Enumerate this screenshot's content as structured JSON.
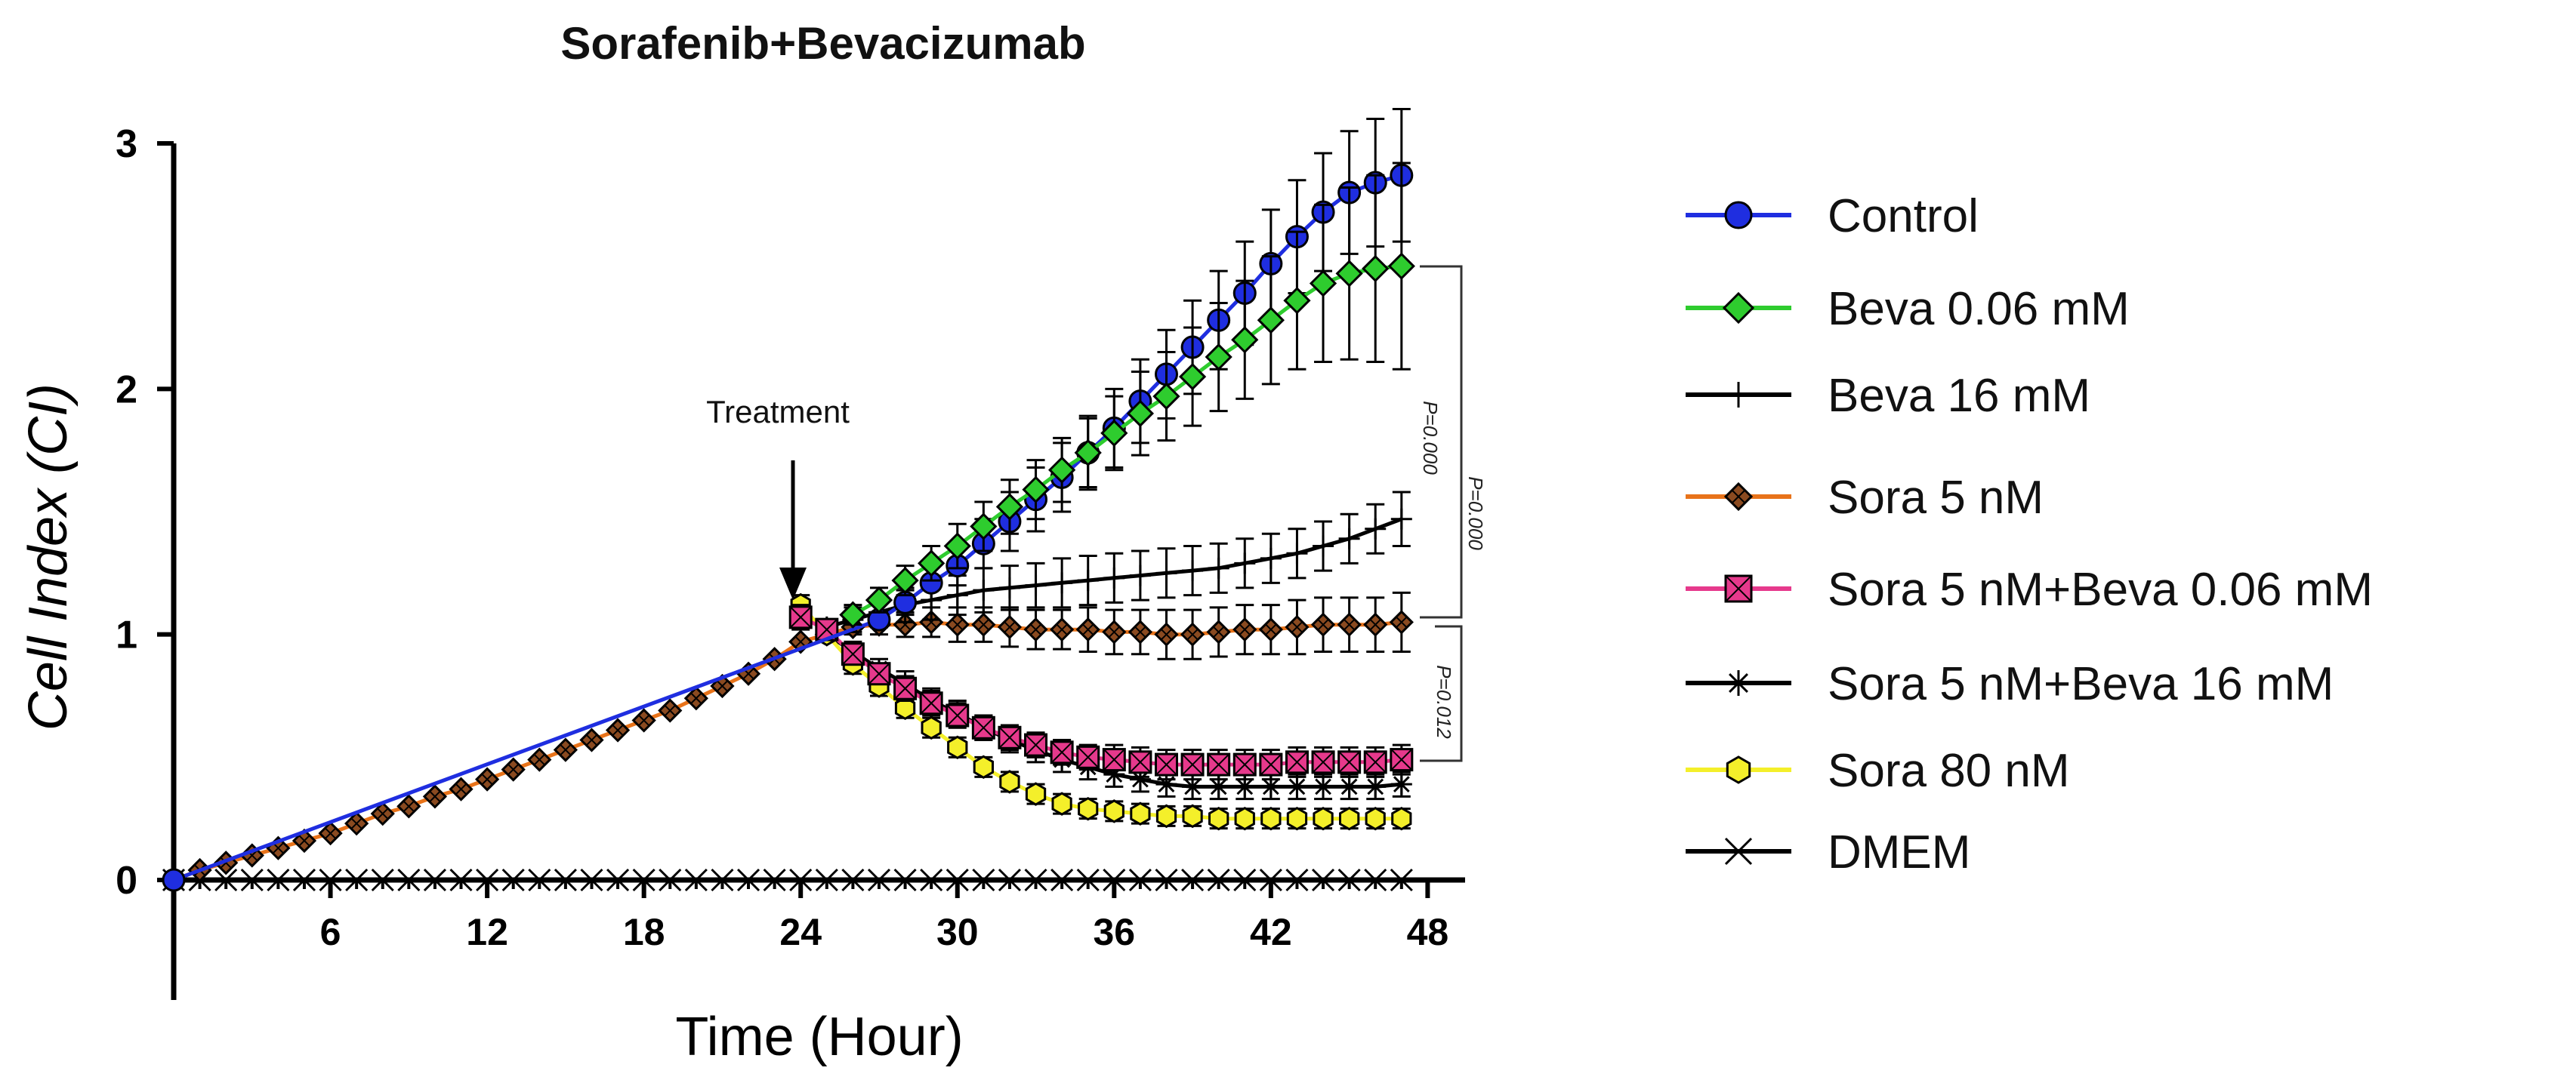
{
  "chart_data": {
    "type": "line",
    "title": "Sorafenib+Bevacizumab",
    "xlabel": "Time (Hour)",
    "ylabel": "Cell Index (CI)",
    "xlim": [
      0,
      49
    ],
    "ylim": [
      -0.5,
      3
    ],
    "x_ticks": [
      6,
      12,
      18,
      24,
      30,
      36,
      42,
      48
    ],
    "x_tick_labels": [
      "6",
      "12",
      "18",
      "24",
      "30",
      "36",
      "42",
      "48"
    ],
    "y_ticks": [
      0,
      1,
      2,
      3
    ],
    "y_tick_labels": [
      "0",
      "1",
      "2",
      "3"
    ],
    "grid": false,
    "legend_position": "right",
    "annotation": {
      "text": "Treatment",
      "x": 24.3
    },
    "significance": [
      {
        "label": "P=0.000",
        "from_series": "Beva 0.06 mM",
        "to_series": "Sora 5 nM"
      },
      {
        "label": "P=0.000",
        "from_series": "Beva 0.06 mM",
        "to_series": "Sora 5 nM+Beva 0.06 mM"
      },
      {
        "label": "P=0.012",
        "from_series": "Sora 5 nM",
        "to_series": "Sora 5 nM+Beva 0.06 mM"
      }
    ],
    "series": [
      {
        "name": "Control",
        "color": "#1f2ee0",
        "marker": "circle",
        "x": [
          0,
          27,
          28,
          29,
          30,
          31,
          32,
          33,
          34,
          35,
          36,
          37,
          38,
          39,
          40,
          41,
          42,
          43,
          44,
          45,
          46,
          47
        ],
        "values": [
          0,
          1.06,
          1.13,
          1.21,
          1.28,
          1.37,
          1.46,
          1.55,
          1.64,
          1.74,
          1.84,
          1.95,
          2.06,
          2.17,
          2.28,
          2.39,
          2.51,
          2.62,
          2.72,
          2.8,
          2.84,
          2.87
        ],
        "errors": [
          0,
          0.03,
          0.05,
          0.07,
          0.08,
          0.1,
          0.12,
          0.13,
          0.14,
          0.15,
          0.16,
          0.17,
          0.18,
          0.19,
          0.2,
          0.21,
          0.22,
          0.23,
          0.24,
          0.25,
          0.26,
          0.27
        ]
      },
      {
        "name": "Beva 0.06 mM",
        "color": "#2ecc2e",
        "marker": "diamond",
        "x": [
          26,
          27,
          28,
          29,
          30,
          31,
          32,
          33,
          34,
          35,
          36,
          37,
          38,
          39,
          40,
          41,
          42,
          43,
          44,
          45,
          46,
          47
        ],
        "values": [
          1.08,
          1.14,
          1.22,
          1.29,
          1.36,
          1.44,
          1.52,
          1.59,
          1.67,
          1.74,
          1.82,
          1.9,
          1.97,
          2.05,
          2.13,
          2.2,
          2.28,
          2.36,
          2.43,
          2.47,
          2.49,
          2.5
        ],
        "errors": [
          0.04,
          0.05,
          0.06,
          0.07,
          0.09,
          0.1,
          0.11,
          0.12,
          0.13,
          0.14,
          0.15,
          0.17,
          0.18,
          0.2,
          0.22,
          0.24,
          0.26,
          0.28,
          0.32,
          0.35,
          0.38,
          0.42
        ]
      },
      {
        "name": "Beva 16 mM",
        "color": "#000000",
        "marker": "plus",
        "x": [
          25,
          26,
          27,
          28,
          29,
          30,
          31,
          32,
          33,
          34,
          35,
          36,
          37,
          38,
          39,
          40,
          41,
          42,
          43,
          44,
          45,
          46,
          47
        ],
        "values": [
          1.03,
          1.06,
          1.09,
          1.12,
          1.14,
          1.16,
          1.18,
          1.19,
          1.2,
          1.21,
          1.22,
          1.23,
          1.24,
          1.25,
          1.26,
          1.27,
          1.29,
          1.31,
          1.33,
          1.36,
          1.39,
          1.43,
          1.47
        ],
        "errors": [
          0.03,
          0.05,
          0.06,
          0.07,
          0.08,
          0.08,
          0.09,
          0.09,
          0.09,
          0.1,
          0.1,
          0.1,
          0.1,
          0.1,
          0.1,
          0.1,
          0.1,
          0.1,
          0.1,
          0.1,
          0.1,
          0.1,
          0.11
        ]
      },
      {
        "name": "Sora 5 nM",
        "color": "#e8731a",
        "marker": "diamond-x",
        "x": [
          0,
          1,
          2,
          3,
          4,
          5,
          6,
          7,
          8,
          9,
          10,
          11,
          12,
          13,
          14,
          15,
          16,
          17,
          18,
          19,
          20,
          21,
          22,
          23,
          24,
          25,
          26,
          27,
          28,
          29,
          30,
          31,
          32,
          33,
          34,
          35,
          36,
          37,
          38,
          39,
          40,
          41,
          42,
          43,
          44,
          45,
          46,
          47
        ],
        "values": [
          0,
          0.04,
          0.07,
          0.1,
          0.13,
          0.16,
          0.19,
          0.23,
          0.27,
          0.3,
          0.34,
          0.37,
          0.41,
          0.45,
          0.49,
          0.53,
          0.57,
          0.61,
          0.65,
          0.69,
          0.74,
          0.79,
          0.84,
          0.9,
          0.97,
          1.0,
          1.03,
          1.04,
          1.04,
          1.05,
          1.04,
          1.04,
          1.03,
          1.02,
          1.02,
          1.02,
          1.01,
          1.01,
          1.0,
          1.0,
          1.01,
          1.02,
          1.02,
          1.03,
          1.04,
          1.04,
          1.04,
          1.05
        ],
        "errors": [
          0,
          0,
          0,
          0,
          0,
          0,
          0,
          0,
          0,
          0,
          0,
          0,
          0,
          0,
          0,
          0,
          0,
          0,
          0,
          0,
          0,
          0,
          0,
          0,
          0,
          0.02,
          0.03,
          0.04,
          0.05,
          0.06,
          0.07,
          0.07,
          0.08,
          0.08,
          0.08,
          0.09,
          0.09,
          0.09,
          0.1,
          0.1,
          0.1,
          0.1,
          0.1,
          0.11,
          0.11,
          0.11,
          0.11,
          0.12
        ]
      },
      {
        "name": "Sora 5 nM+Beva 0.06 mM",
        "color": "#e6398c",
        "marker": "square-x",
        "x": [
          24,
          25,
          26,
          27,
          28,
          29,
          30,
          31,
          32,
          33,
          34,
          35,
          36,
          37,
          38,
          39,
          40,
          41,
          42,
          43,
          44,
          45,
          46,
          47
        ],
        "values": [
          1.07,
          1.02,
          0.92,
          0.84,
          0.78,
          0.72,
          0.67,
          0.62,
          0.58,
          0.55,
          0.52,
          0.5,
          0.49,
          0.48,
          0.47,
          0.47,
          0.47,
          0.47,
          0.47,
          0.48,
          0.48,
          0.48,
          0.48,
          0.49
        ],
        "errors": [
          0.05,
          0.03,
          0.04,
          0.04,
          0.05,
          0.05,
          0.05,
          0.05,
          0.05,
          0.05,
          0.05,
          0.05,
          0.06,
          0.06,
          0.06,
          0.06,
          0.06,
          0.06,
          0.06,
          0.06,
          0.06,
          0.06,
          0.06,
          0.06
        ]
      },
      {
        "name": "Sora 5 nM+Beva 16 mM",
        "color": "#000000",
        "marker": "asterisk",
        "x": [
          25,
          26,
          27,
          28,
          29,
          30,
          31,
          32,
          33,
          34,
          35,
          36,
          37,
          38,
          39,
          40,
          41,
          42,
          43,
          44,
          45,
          46,
          47
        ],
        "values": [
          1.0,
          0.93,
          0.86,
          0.8,
          0.73,
          0.68,
          0.62,
          0.57,
          0.53,
          0.49,
          0.46,
          0.43,
          0.41,
          0.39,
          0.38,
          0.38,
          0.38,
          0.38,
          0.38,
          0.38,
          0.38,
          0.38,
          0.39
        ],
        "errors": [
          0.03,
          0.04,
          0.04,
          0.05,
          0.05,
          0.05,
          0.05,
          0.05,
          0.05,
          0.05,
          0.05,
          0.05,
          0.05,
          0.05,
          0.05,
          0.05,
          0.05,
          0.05,
          0.05,
          0.05,
          0.05,
          0.05,
          0.05
        ]
      },
      {
        "name": "Sora 80 nM",
        "color": "#f4ef2a",
        "marker": "hexagon",
        "x": [
          24,
          25,
          26,
          27,
          28,
          29,
          30,
          31,
          32,
          33,
          34,
          35,
          36,
          37,
          38,
          39,
          40,
          41,
          42,
          43,
          44,
          45,
          46,
          47
        ],
        "values": [
          1.12,
          1.0,
          0.88,
          0.79,
          0.7,
          0.62,
          0.54,
          0.46,
          0.4,
          0.35,
          0.31,
          0.29,
          0.28,
          0.27,
          0.26,
          0.26,
          0.25,
          0.25,
          0.25,
          0.25,
          0.25,
          0.25,
          0.25,
          0.25
        ],
        "errors": [
          0.04,
          0.03,
          0.04,
          0.04,
          0.04,
          0.04,
          0.04,
          0.04,
          0.04,
          0.04,
          0.04,
          0.04,
          0.04,
          0.04,
          0.04,
          0.04,
          0.04,
          0.04,
          0.04,
          0.04,
          0.04,
          0.04,
          0.04,
          0.04
        ]
      },
      {
        "name": "DMEM",
        "color": "#000000",
        "marker": "x",
        "x": [
          0,
          1,
          2,
          3,
          4,
          5,
          6,
          7,
          8,
          9,
          10,
          11,
          12,
          13,
          14,
          15,
          16,
          17,
          18,
          19,
          20,
          21,
          22,
          23,
          24,
          25,
          26,
          27,
          28,
          29,
          30,
          31,
          32,
          33,
          34,
          35,
          36,
          37,
          38,
          39,
          40,
          41,
          42,
          43,
          44,
          45,
          46,
          47
        ],
        "values": [
          0,
          0,
          0,
          0,
          0,
          0,
          0,
          0,
          0,
          0,
          0,
          0,
          0,
          0,
          0,
          0,
          0,
          0,
          0,
          0,
          0,
          0,
          0,
          0,
          0,
          0,
          0,
          0,
          0,
          0,
          0,
          0,
          0,
          0,
          0,
          0,
          0,
          0,
          0,
          0,
          0,
          0,
          0,
          0,
          0,
          0,
          0,
          0
        ],
        "errors": []
      }
    ]
  }
}
